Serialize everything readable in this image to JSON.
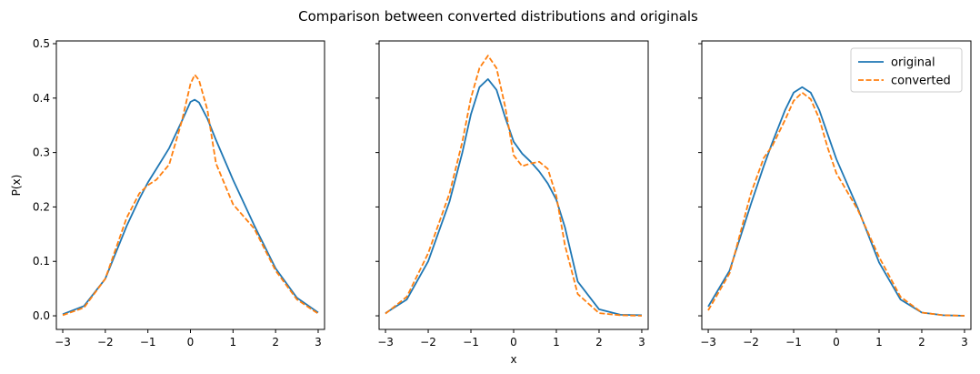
{
  "figure": {
    "title": "Comparison between converted distributions and originals"
  },
  "colors": {
    "original": "#1f77b4",
    "converted": "#ff7f0e"
  },
  "chart_data": [
    {
      "type": "line",
      "xlabel": "",
      "ylabel": "P(x)",
      "xlim": [
        -3.15,
        3.15
      ],
      "ylim": [
        -0.025,
        0.505
      ],
      "xticks": [
        -3,
        -2,
        -1,
        0,
        1,
        2,
        3
      ],
      "yticks": [
        0.0,
        0.1,
        0.2,
        0.3,
        0.4,
        0.5
      ],
      "ytick_labels": [
        "0.0",
        "0.1",
        "0.2",
        "0.3",
        "0.4",
        "0.5"
      ],
      "show_ytick_labels": true,
      "grid": false,
      "legend": null,
      "x": [
        -3.0,
        -2.5,
        -2.0,
        -1.5,
        -1.2,
        -1.0,
        -0.8,
        -0.5,
        -0.2,
        0.0,
        0.1,
        0.2,
        0.4,
        0.6,
        1.0,
        1.5,
        2.0,
        2.5,
        3.0
      ],
      "series": [
        {
          "name": "original",
          "style": "solid",
          "values": [
            0.003,
            0.018,
            0.068,
            0.165,
            0.215,
            0.245,
            0.27,
            0.308,
            0.358,
            0.393,
            0.397,
            0.392,
            0.362,
            0.323,
            0.25,
            0.166,
            0.087,
            0.033,
            0.006
          ]
        },
        {
          "name": "converted",
          "style": "dashed",
          "values": [
            0.001,
            0.015,
            0.068,
            0.18,
            0.225,
            0.24,
            0.25,
            0.278,
            0.358,
            0.426,
            0.443,
            0.433,
            0.378,
            0.28,
            0.205,
            0.16,
            0.083,
            0.03,
            0.004
          ]
        }
      ]
    },
    {
      "type": "line",
      "xlabel": "x",
      "ylabel": "",
      "xlim": [
        -3.15,
        3.15
      ],
      "ylim": [
        -0.025,
        0.505
      ],
      "xticks": [
        -3,
        -2,
        -1,
        0,
        1,
        2,
        3
      ],
      "yticks": [
        0.0,
        0.1,
        0.2,
        0.3,
        0.4,
        0.5
      ],
      "ytick_labels": [
        "0.0",
        "0.1",
        "0.2",
        "0.3",
        "0.4",
        "0.5"
      ],
      "show_ytick_labels": false,
      "grid": false,
      "legend": null,
      "x": [
        -3.0,
        -2.5,
        -2.0,
        -1.5,
        -1.2,
        -1.0,
        -0.8,
        -0.6,
        -0.4,
        -0.2,
        0.0,
        0.2,
        0.4,
        0.6,
        0.8,
        1.0,
        1.2,
        1.5,
        2.0,
        2.5,
        3.0
      ],
      "series": [
        {
          "name": "original",
          "style": "solid",
          "values": [
            0.005,
            0.03,
            0.1,
            0.21,
            0.3,
            0.37,
            0.42,
            0.435,
            0.415,
            0.365,
            0.32,
            0.298,
            0.283,
            0.265,
            0.243,
            0.213,
            0.163,
            0.063,
            0.012,
            0.002,
            0.001
          ]
        },
        {
          "name": "converted",
          "style": "dashed",
          "values": [
            0.004,
            0.035,
            0.115,
            0.225,
            0.32,
            0.4,
            0.455,
            0.478,
            0.455,
            0.385,
            0.295,
            0.275,
            0.28,
            0.283,
            0.27,
            0.22,
            0.13,
            0.04,
            0.005,
            0.001,
            0.0
          ]
        }
      ]
    },
    {
      "type": "line",
      "xlabel": "",
      "ylabel": "",
      "xlim": [
        -3.15,
        3.15
      ],
      "ylim": [
        -0.025,
        0.505
      ],
      "xticks": [
        -3,
        -2,
        -1,
        0,
        1,
        2,
        3
      ],
      "yticks": [
        0.0,
        0.1,
        0.2,
        0.3,
        0.4,
        0.5
      ],
      "ytick_labels": [
        "0.0",
        "0.1",
        "0.2",
        "0.3",
        "0.4",
        "0.5"
      ],
      "show_ytick_labels": false,
      "grid": false,
      "legend": "top-right",
      "x": [
        -3.0,
        -2.5,
        -2.0,
        -1.7,
        -1.5,
        -1.2,
        -1.0,
        -0.8,
        -0.6,
        -0.4,
        -0.2,
        0.0,
        0.5,
        1.0,
        1.5,
        2.0,
        2.5,
        3.0
      ],
      "series": [
        {
          "name": "original",
          "style": "solid",
          "values": [
            0.017,
            0.083,
            0.205,
            0.275,
            0.318,
            0.378,
            0.41,
            0.42,
            0.41,
            0.378,
            0.333,
            0.288,
            0.198,
            0.098,
            0.03,
            0.006,
            0.001,
            0.0
          ]
        },
        {
          "name": "converted",
          "style": "dashed",
          "values": [
            0.01,
            0.078,
            0.225,
            0.29,
            0.312,
            0.36,
            0.395,
            0.41,
            0.398,
            0.362,
            0.308,
            0.262,
            0.195,
            0.108,
            0.035,
            0.006,
            0.001,
            0.0
          ]
        }
      ]
    }
  ]
}
